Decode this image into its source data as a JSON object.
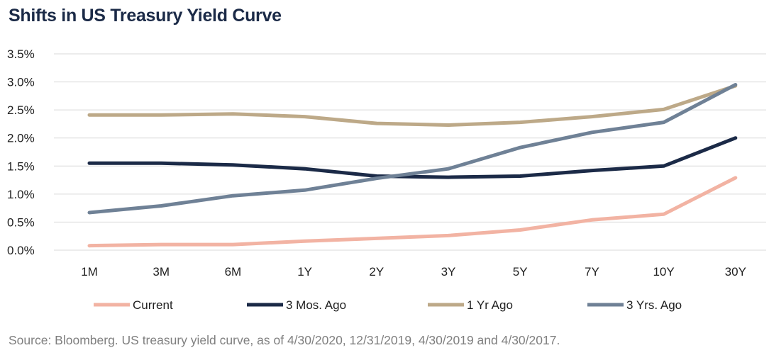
{
  "title": "Shifts in US Treasury Yield Curve",
  "source": "Source: Bloomberg. US treasury yield curve, as of 4/30/2020, 12/31/2019, 4/30/2019 and 4/30/2017.",
  "chart_data": {
    "type": "line",
    "title": "Shifts in US Treasury Yield Curve",
    "xlabel": "",
    "ylabel": "",
    "categories": [
      "1M",
      "3M",
      "6M",
      "1Y",
      "2Y",
      "3Y",
      "5Y",
      "7Y",
      "10Y",
      "30Y"
    ],
    "ylim": [
      0,
      3.5
    ],
    "yticks": [
      0.0,
      0.5,
      1.0,
      1.5,
      2.0,
      2.5,
      3.0,
      3.5
    ],
    "ytick_labels": [
      "0.0%",
      "0.5%",
      "1.0%",
      "1.5%",
      "2.0%",
      "2.5%",
      "3.0%",
      "3.5%"
    ],
    "grid": "horizontal",
    "legend_position": "bottom",
    "series": [
      {
        "name": "Current",
        "color": "#f2b3a3",
        "values": [
          0.08,
          0.1,
          0.1,
          0.16,
          0.21,
          0.26,
          0.36,
          0.54,
          0.64,
          1.29
        ]
      },
      {
        "name": "3 Mos. Ago",
        "color": "#1b2a47",
        "values": [
          1.55,
          1.55,
          1.52,
          1.45,
          1.32,
          1.3,
          1.32,
          1.42,
          1.5,
          2.0
        ]
      },
      {
        "name": "1 Yr Ago",
        "color": "#bda988",
        "values": [
          2.41,
          2.41,
          2.43,
          2.38,
          2.26,
          2.23,
          2.28,
          2.38,
          2.51,
          2.93
        ]
      },
      {
        "name": "3 Yrs. Ago",
        "color": "#6f8196",
        "values": [
          0.67,
          0.79,
          0.97,
          1.07,
          1.28,
          1.45,
          1.83,
          2.1,
          2.28,
          2.95
        ]
      }
    ]
  }
}
